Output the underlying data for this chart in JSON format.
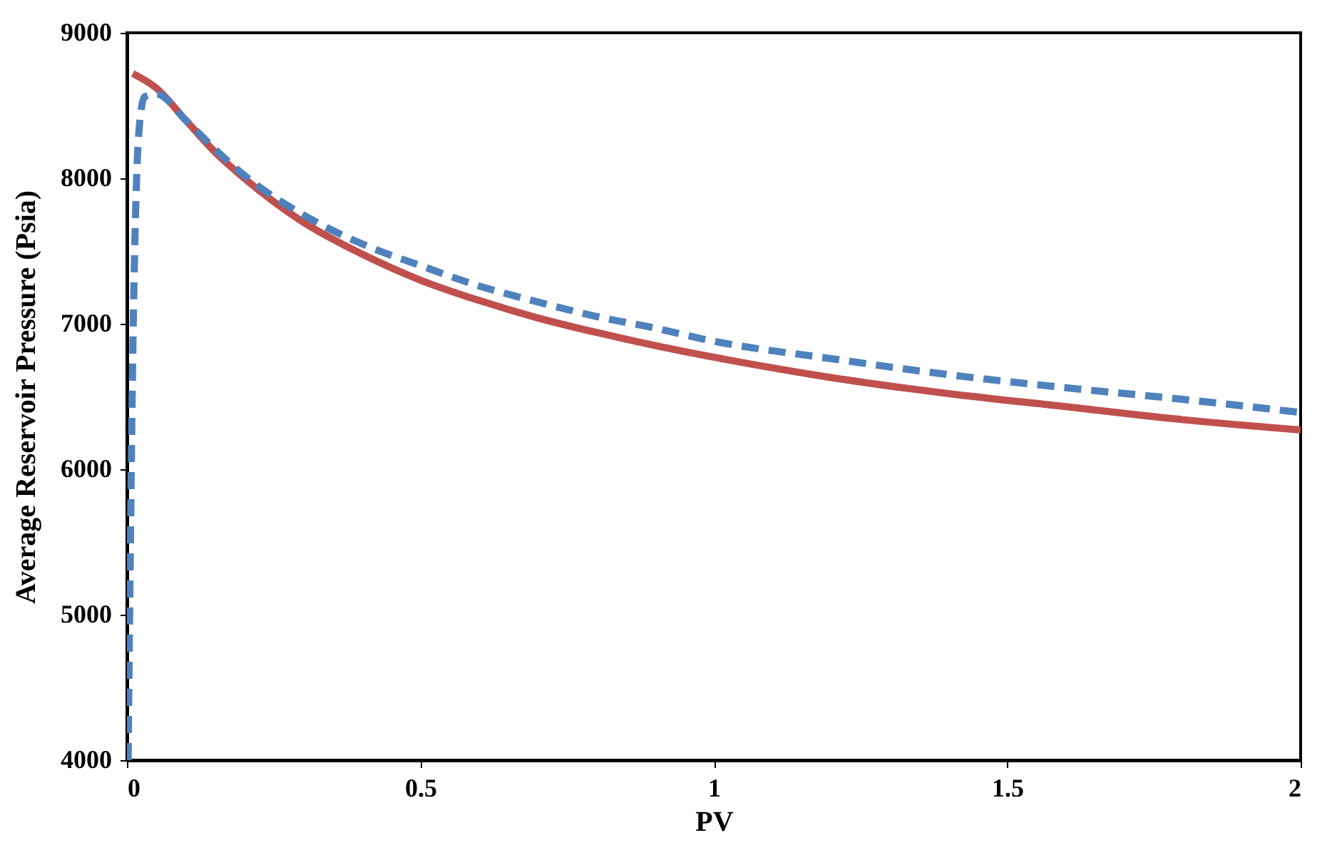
{
  "chart_data": {
    "type": "line",
    "xlabel": "PV",
    "ylabel": "Average Reservoir Pressure (Psia)",
    "xlim": [
      0,
      2
    ],
    "xticks": [
      0,
      0.5,
      1,
      1.5,
      2
    ],
    "ylim": [
      4000,
      9000
    ],
    "yticks": [
      4000,
      5000,
      6000,
      7000,
      8000,
      9000
    ],
    "grid": false,
    "series": [
      {
        "color": "#c0504d",
        "line_style": "solid",
        "x": [
          0.01,
          0.05,
          0.1,
          0.15,
          0.2,
          0.25,
          0.3,
          0.4,
          0.5,
          0.6,
          0.7,
          0.8,
          0.9,
          1.0,
          1.2,
          1.4,
          1.6,
          1.8,
          2.0
        ],
        "values": [
          8720,
          8620,
          8400,
          8180,
          8000,
          7840,
          7700,
          7480,
          7300,
          7160,
          7040,
          6940,
          6850,
          6770,
          6630,
          6520,
          6430,
          6340,
          6270
        ]
      },
      {
        "color": "#4f81bd",
        "line_style": "dashed",
        "x": [
          0.002,
          0.006,
          0.01,
          0.015,
          0.02,
          0.03,
          0.05,
          0.1,
          0.15,
          0.2,
          0.3,
          0.4,
          0.5,
          0.6,
          0.7,
          0.8,
          0.9,
          1.0,
          1.2,
          1.4,
          1.6,
          1.8,
          2.0
        ],
        "values": [
          4000,
          5500,
          6800,
          7800,
          8300,
          8560,
          8580,
          8400,
          8200,
          8020,
          7750,
          7550,
          7400,
          7260,
          7150,
          7050,
          6970,
          6880,
          6760,
          6650,
          6560,
          6480,
          6390
        ]
      }
    ]
  }
}
